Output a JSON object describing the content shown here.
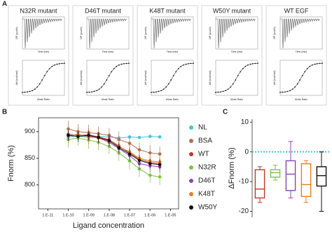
{
  "panel_a": {
    "label": "A",
    "subpanels": [
      {
        "title": "N32R mutant"
      },
      {
        "title": "D46T mutant"
      },
      {
        "title": "K48T mutant"
      },
      {
        "title": "W50Y mutant"
      },
      {
        "title": "WT EGF"
      }
    ],
    "top_x_label": "Time (min)",
    "top_y_label": "DP (µcal/s)",
    "bottom_x_label": "Molar Ratio",
    "bottom_y_label": "ΔH (kcal/mol)"
  },
  "chart_data": [
    {
      "type": "scatter",
      "panel": "B",
      "x_label": "Ligand concentration",
      "y_label": "Fnorm (%)",
      "log_x": true,
      "xlim": [
        3.5e-12,
        2.5e-05
      ],
      "xticks": [
        {
          "value": 1e-11,
          "label": "1.E-11"
        },
        {
          "value": 1e-10,
          "label": "1.E-10"
        },
        {
          "value": 1e-09,
          "label": "1.E-09"
        },
        {
          "value": 1e-08,
          "label": "1.E-08"
        },
        {
          "value": 1e-07,
          "label": "1.E-07"
        },
        {
          "value": 1e-06,
          "label": "1.E-06"
        },
        {
          "value": 1e-05,
          "label": "1.E-05"
        }
      ],
      "ylim": [
        755,
        926
      ],
      "yticks": [
        800,
        850,
        900
      ],
      "x": [
        1e-10,
        3e-10,
        1e-09,
        3e-09,
        1e-08,
        3e-08,
        1e-07,
        3e-07,
        1e-06,
        3e-06
      ],
      "series": [
        {
          "name": "NL",
          "color": "#3fc6d9",
          "values": [
            890,
            892,
            889,
            891,
            890,
            888,
            890,
            889,
            891,
            890
          ],
          "errors": [
            3,
            3,
            3,
            3,
            3,
            3,
            3,
            3,
            3,
            3
          ]
        },
        {
          "name": "BSA",
          "color": "#b07050",
          "values": [
            905,
            900,
            898,
            896,
            893,
            885,
            878,
            866,
            860,
            858
          ],
          "errors": [
            15,
            14,
            15,
            13,
            14,
            15,
            14,
            13,
            15,
            14
          ]
        },
        {
          "name": "WT",
          "color": "#c0392b",
          "values": [
            895,
            893,
            894,
            890,
            885,
            873,
            860,
            848,
            842,
            840
          ],
          "errors": [
            12,
            11,
            12,
            10,
            12,
            11,
            12,
            10,
            11,
            12
          ]
        },
        {
          "name": "N32R",
          "color": "#7dc242",
          "values": [
            885,
            888,
            884,
            880,
            872,
            860,
            845,
            830,
            818,
            815
          ],
          "errors": [
            15,
            14,
            16,
            15,
            14,
            15,
            16,
            15,
            14,
            15
          ]
        },
        {
          "name": "D46T",
          "color": "#8e44ad",
          "values": [
            895,
            893,
            892,
            888,
            880,
            868,
            855,
            840,
            836,
            834
          ],
          "errors": [
            12,
            11,
            12,
            12,
            11,
            12,
            11,
            12,
            12,
            11
          ]
        },
        {
          "name": "K48T",
          "color": "#e67e22",
          "values": [
            892,
            895,
            890,
            888,
            882,
            872,
            862,
            850,
            845,
            843
          ],
          "errors": [
            14,
            13,
            14,
            14,
            13,
            14,
            13,
            14,
            14,
            13
          ]
        },
        {
          "name": "W50Y",
          "color": "#111111",
          "values": [
            893,
            891,
            893,
            889,
            883,
            870,
            858,
            846,
            840,
            838
          ],
          "errors": [
            10,
            10,
            9,
            10,
            10,
            9,
            10,
            10,
            9,
            10
          ]
        }
      ]
    },
    {
      "type": "box",
      "panel": "C",
      "y_label": "ΔFnorm (%)",
      "ylim": [
        -22,
        11
      ],
      "yticks": [
        10,
        0,
        -10,
        -20
      ],
      "reference_line": 0,
      "reference_color": "#3fc6d9",
      "boxes": [
        {
          "color": "#c0392b",
          "min": -17,
          "q1": -15.5,
          "median": -12.5,
          "q3": -6,
          "max": -5
        },
        {
          "color": "#7dc242",
          "min": -9.5,
          "q1": -8.5,
          "median": -7,
          "q3": -6,
          "max": -4.5
        },
        {
          "color": "#8e44ad",
          "min": -15.5,
          "q1": -13,
          "median": -7.5,
          "q3": -3,
          "max": 3.5
        },
        {
          "color": "#e67e22",
          "min": -17,
          "q1": -15,
          "median": -11,
          "q3": -4,
          "max": -3
        },
        {
          "color": "#111111",
          "min": -20,
          "q1": -11.5,
          "median": -8,
          "q3": -5,
          "max": 0
        }
      ]
    }
  ]
}
